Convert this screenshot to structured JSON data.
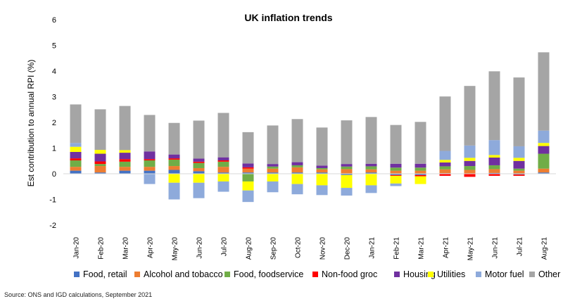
{
  "chart_data": {
    "type": "bar",
    "stacked": true,
    "title": "UK inflation trends",
    "xlabel": "",
    "ylabel": "Est contribution to annual RPI (%)",
    "ylim": [
      -2,
      6
    ],
    "yticks": [
      -2,
      -1,
      0,
      1,
      2,
      3,
      4,
      5,
      6
    ],
    "grid": false,
    "legend_position": "bottom",
    "categories": [
      "Jan-20",
      "Feb-20",
      "Mar-20",
      "Apr-20",
      "May-20",
      "Jun-20",
      "Jul-20",
      "Aug-20",
      "Sep-20",
      "Oct-20",
      "Nov-20",
      "Dec-20",
      "Jan-21",
      "Feb-21",
      "Mar-21",
      "Apr-21",
      "May-21",
      "Jun-21",
      "Jul-21",
      "Aug-21"
    ],
    "series": [
      {
        "name": "Food, retail",
        "color": "#4472C4",
        "values": [
          0.12,
          0.05,
          0.12,
          0.12,
          0.15,
          0.1,
          0.05,
          0.05,
          0.05,
          0.05,
          0.05,
          -0.05,
          0.05,
          -0.05,
          -0.05,
          0.02,
          0.0,
          0.03,
          -0.03,
          0.05
        ]
      },
      {
        "name": "Alcohol and tobacco",
        "color": "#ED7D31",
        "values": [
          0.15,
          0.25,
          0.15,
          0.15,
          0.15,
          0.12,
          0.22,
          0.15,
          0.15,
          0.2,
          0.12,
          0.18,
          0.12,
          0.12,
          0.12,
          0.15,
          0.15,
          0.15,
          0.12,
          0.15
        ]
      },
      {
        "name": "Food, foodservice",
        "color": "#70AD47",
        "values": [
          0.25,
          0.08,
          0.2,
          0.25,
          0.25,
          0.2,
          0.2,
          -0.3,
          0.08,
          0.08,
          0.05,
          0.1,
          0.12,
          0.12,
          0.12,
          0.12,
          0.15,
          0.15,
          0.08,
          0.58
        ]
      },
      {
        "name": "Non-food groc",
        "color": "#FF0000",
        "values": [
          0.08,
          0.1,
          0.1,
          0.05,
          0.05,
          0.05,
          0.05,
          0.05,
          0.0,
          0.0,
          0.0,
          0.0,
          0.0,
          -0.03,
          -0.05,
          -0.08,
          -0.12,
          -0.08,
          -0.05,
          0.0
        ]
      },
      {
        "name": "Housing",
        "color": "#7030A0",
        "values": [
          0.25,
          0.3,
          0.25,
          0.3,
          0.15,
          0.12,
          0.12,
          0.15,
          0.1,
          0.12,
          0.1,
          0.1,
          0.1,
          0.15,
          0.15,
          0.15,
          0.2,
          0.3,
          0.3,
          0.3
        ]
      },
      {
        "name": "Utilities",
        "color": "#FFFF00",
        "values": [
          0.2,
          0.15,
          0.1,
          0.0,
          -0.35,
          -0.35,
          -0.3,
          -0.35,
          -0.3,
          -0.4,
          -0.45,
          -0.5,
          -0.45,
          -0.3,
          -0.3,
          0.1,
          0.12,
          0.1,
          0.12,
          0.12
        ]
      },
      {
        "name": "Motor fuel",
        "color": "#8EAADB",
        "values": [
          0.15,
          0.0,
          0.0,
          -0.4,
          -0.65,
          -0.6,
          -0.4,
          -0.45,
          -0.42,
          -0.4,
          -0.38,
          -0.3,
          -0.3,
          -0.1,
          0.0,
          0.35,
          0.48,
          0.58,
          0.45,
          0.48
        ]
      },
      {
        "name": "Other",
        "color": "#A5A5A5",
        "values": [
          1.5,
          1.58,
          1.72,
          1.42,
          1.23,
          1.48,
          1.73,
          1.22,
          1.5,
          1.68,
          1.48,
          1.7,
          1.82,
          1.51,
          1.63,
          2.12,
          2.32,
          2.68,
          2.68,
          3.05
        ]
      }
    ]
  },
  "source_note": "Source: ONS and IGD calculations, September 2021"
}
